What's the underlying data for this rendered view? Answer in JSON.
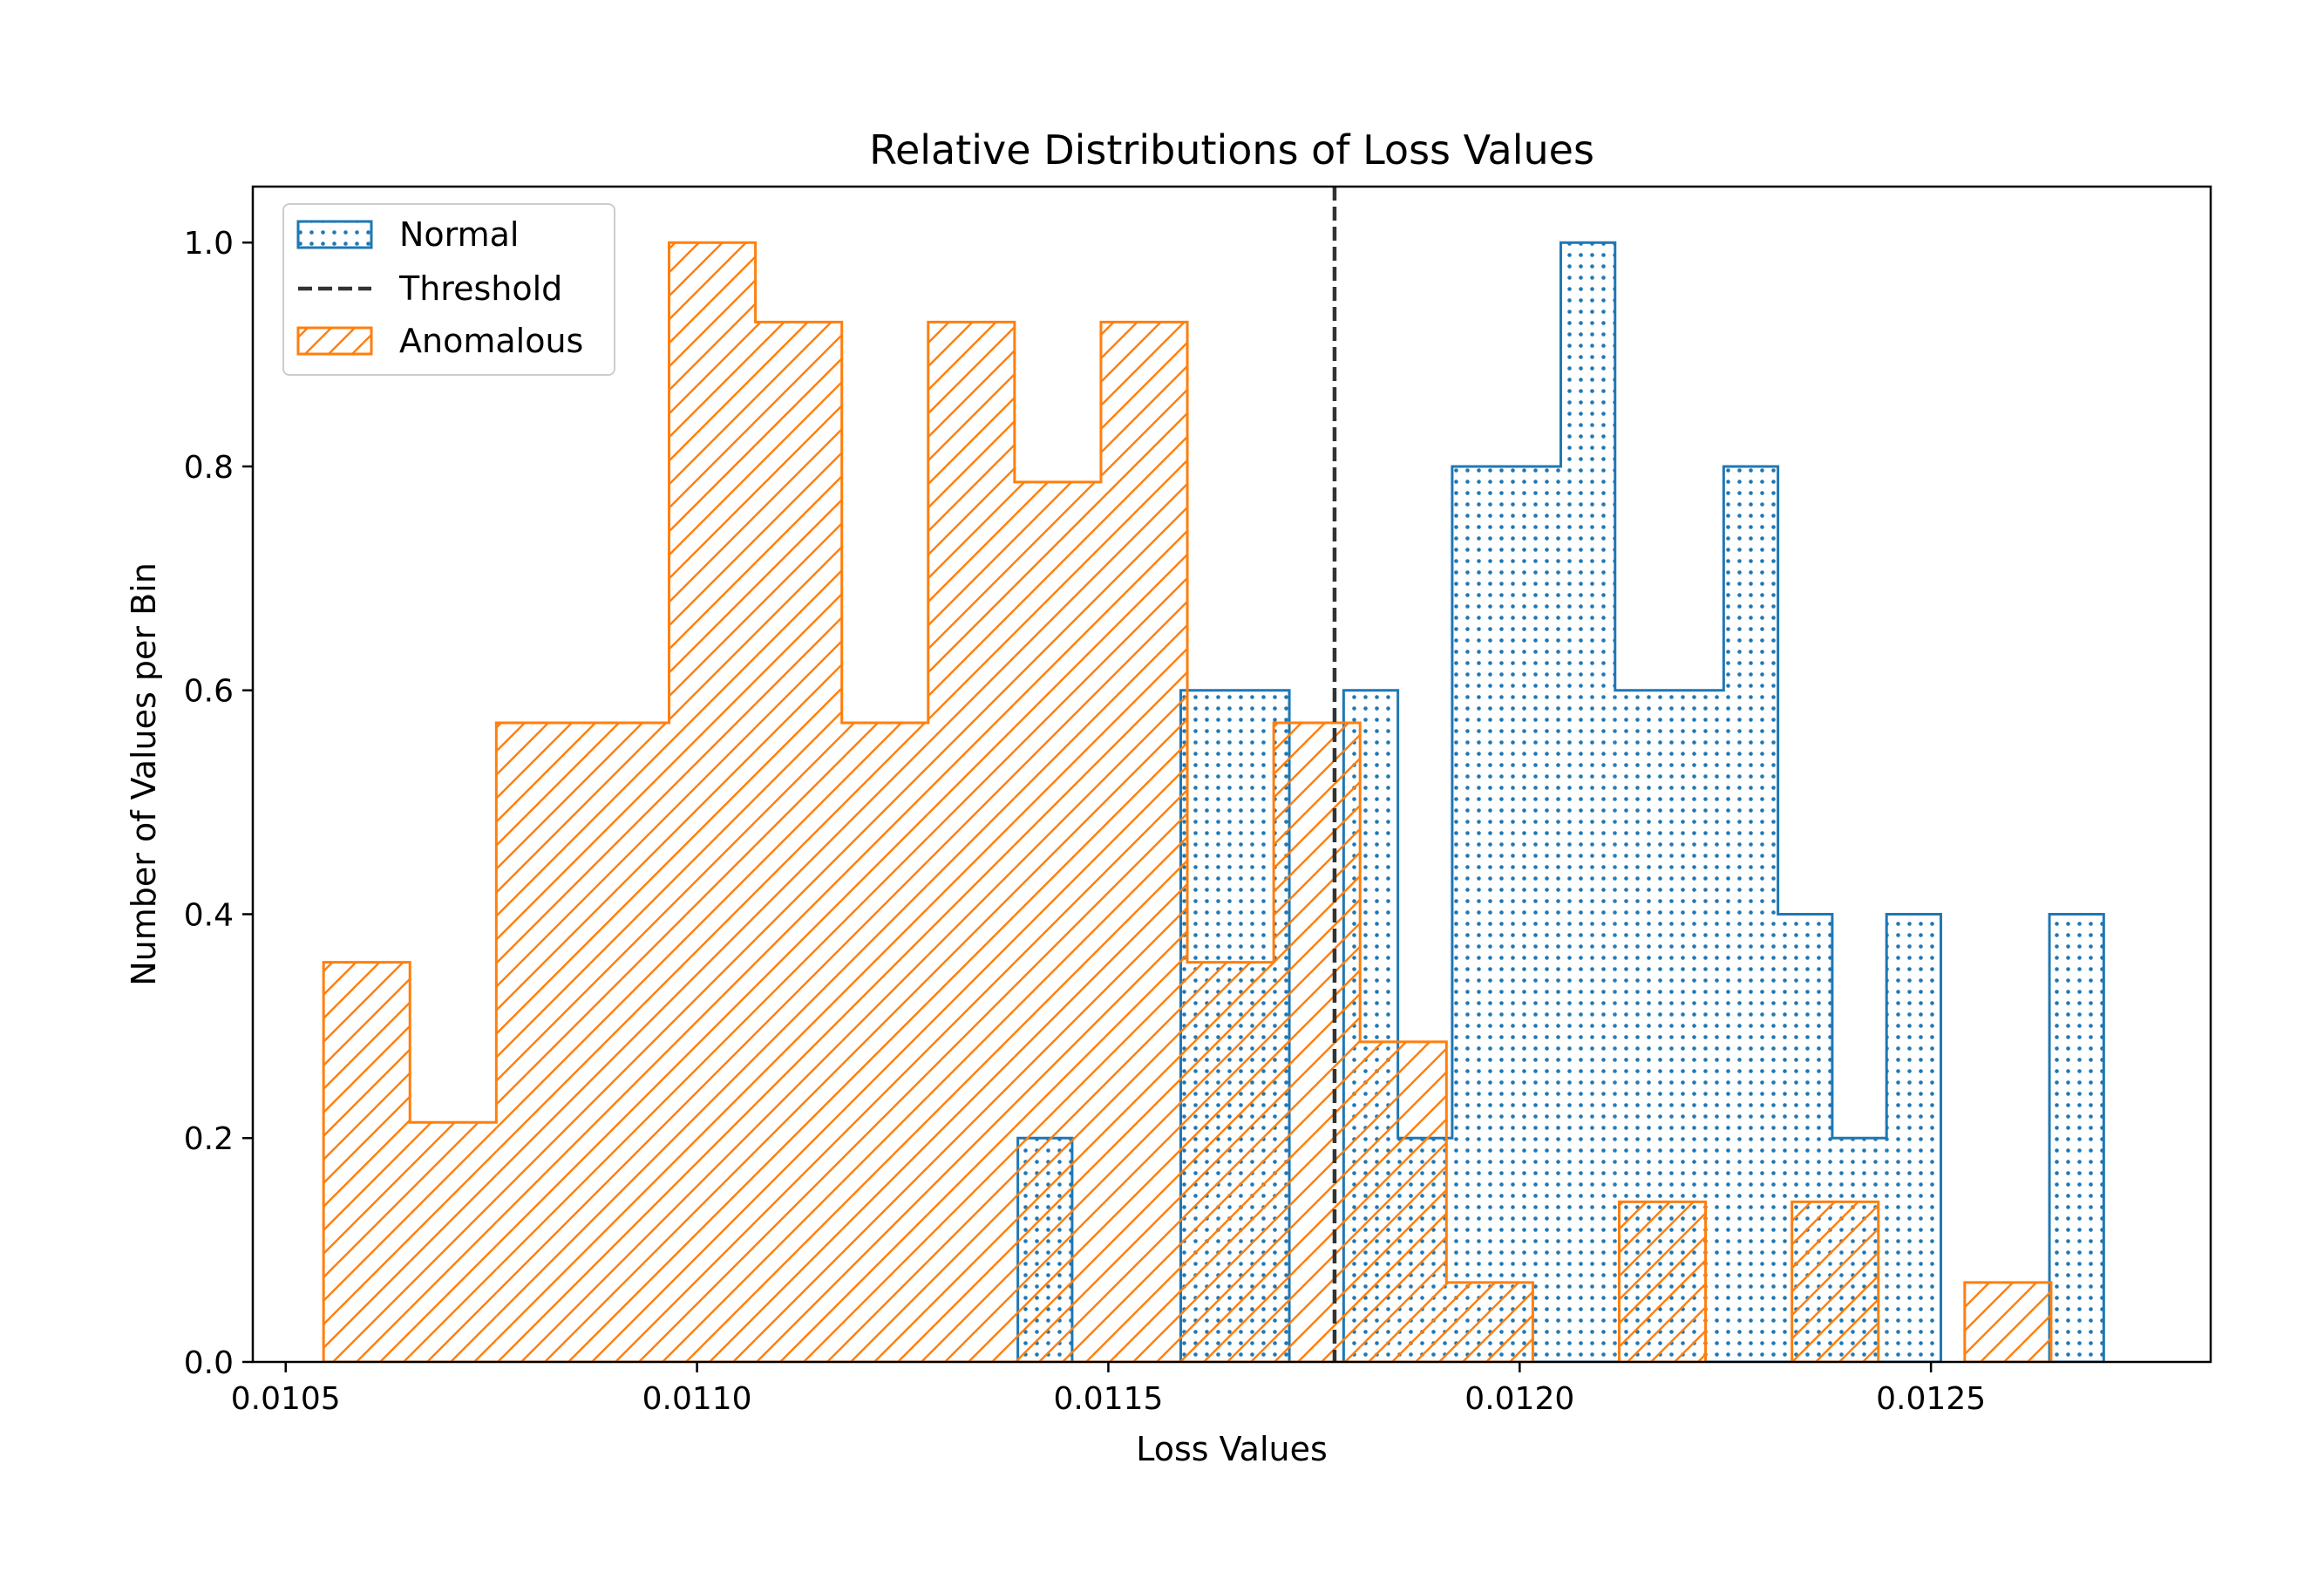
{
  "chart_data": {
    "type": "histogram",
    "title": "Relative Distributions of Loss Values",
    "xlabel": "Loss Values",
    "ylabel": "Number of Values per Bin",
    "xlim": [
      0.01046,
      0.01284
    ],
    "ylim": [
      0,
      1.05
    ],
    "xticks": [
      0.0105,
      0.011,
      0.0115,
      0.012,
      0.0125
    ],
    "xtick_labels": [
      "0.0105",
      "0.0110",
      "0.0115",
      "0.0120",
      "0.0125"
    ],
    "yticks": [
      0.0,
      0.2,
      0.4,
      0.6,
      0.8,
      1.0
    ],
    "ytick_labels": [
      "0.0",
      "0.2",
      "0.4",
      "0.6",
      "0.8",
      "1.0"
    ],
    "threshold": 0.011775,
    "legend_location": "upper-left",
    "series": [
      {
        "name": "Normal",
        "color": "#1f77b4",
        "hatch": "dots",
        "bins": [
          {
            "x0": 0.01139,
            "x1": 0.011456,
            "value": 0.2
          },
          {
            "x0": 0.011588,
            "x1": 0.01172,
            "value": 0.6
          },
          {
            "x0": 0.011786,
            "x1": 0.011852,
            "value": 0.6
          },
          {
            "x0": 0.011852,
            "x1": 0.011918,
            "value": 0.2
          },
          {
            "x0": 0.011918,
            "x1": 0.01205,
            "value": 0.8
          },
          {
            "x0": 0.01205,
            "x1": 0.012116,
            "value": 1.0
          },
          {
            "x0": 0.012116,
            "x1": 0.012248,
            "value": 0.6
          },
          {
            "x0": 0.012248,
            "x1": 0.012314,
            "value": 0.8
          },
          {
            "x0": 0.012314,
            "x1": 0.01238,
            "value": 0.4
          },
          {
            "x0": 0.01238,
            "x1": 0.012446,
            "value": 0.2
          },
          {
            "x0": 0.012446,
            "x1": 0.012512,
            "value": 0.4
          },
          {
            "x0": 0.012644,
            "x1": 0.01271,
            "value": 0.4
          }
        ]
      },
      {
        "name": "Anomalous",
        "color": "#ff7f0e",
        "hatch": "diagonal",
        "bins": [
          {
            "x0": 0.010546,
            "x1": 0.010651,
            "value": 0.357
          },
          {
            "x0": 0.010651,
            "x1": 0.010756,
            "value": 0.214
          },
          {
            "x0": 0.010756,
            "x1": 0.010966,
            "value": 0.571
          },
          {
            "x0": 0.010966,
            "x1": 0.011071,
            "value": 1.0
          },
          {
            "x0": 0.011071,
            "x1": 0.011176,
            "value": 0.929
          },
          {
            "x0": 0.011176,
            "x1": 0.011281,
            "value": 0.571
          },
          {
            "x0": 0.011281,
            "x1": 0.011386,
            "value": 0.929
          },
          {
            "x0": 0.011386,
            "x1": 0.011491,
            "value": 0.786
          },
          {
            "x0": 0.011491,
            "x1": 0.011596,
            "value": 0.929
          },
          {
            "x0": 0.011596,
            "x1": 0.011701,
            "value": 0.357
          },
          {
            "x0": 0.011701,
            "x1": 0.011806,
            "value": 0.571
          },
          {
            "x0": 0.011806,
            "x1": 0.011911,
            "value": 0.286
          },
          {
            "x0": 0.011911,
            "x1": 0.012016,
            "value": 0.071
          },
          {
            "x0": 0.012121,
            "x1": 0.012226,
            "value": 0.143
          },
          {
            "x0": 0.012331,
            "x1": 0.012436,
            "value": 0.143
          },
          {
            "x0": 0.012541,
            "x1": 0.012646,
            "value": 0.071
          }
        ]
      }
    ],
    "legend": [
      "Normal",
      "Threshold",
      "Anomalous"
    ]
  }
}
